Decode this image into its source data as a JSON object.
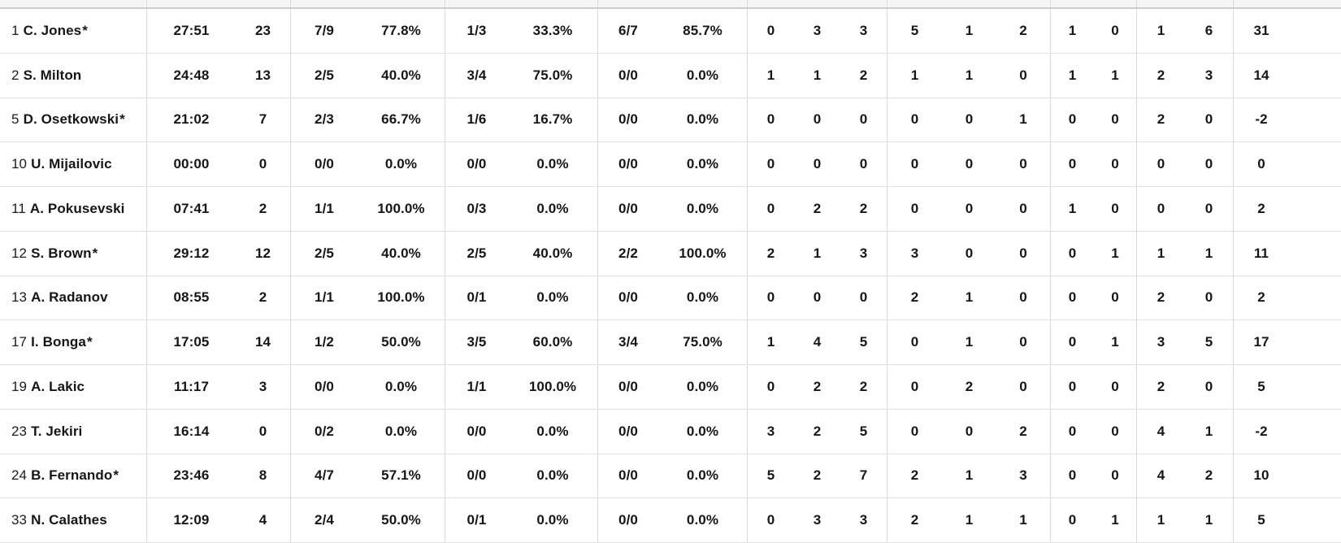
{
  "table": {
    "starter_mark": "*",
    "stat_keys": [
      "min",
      "pts",
      "fg2",
      "fg2_pct",
      "fg3",
      "fg3_pct",
      "ft",
      "ft_pct",
      "oreb",
      "dreb",
      "reb",
      "ast",
      "stl",
      "tov",
      "blk_fv",
      "blk_ag",
      "fouls_cm",
      "fouls_rv",
      "pir"
    ],
    "players": [
      {
        "number": "1",
        "name": "C. Jones",
        "starter": true,
        "stats": [
          "27:51",
          "23",
          "7/9",
          "77.8%",
          "1/3",
          "33.3%",
          "6/7",
          "85.7%",
          "0",
          "3",
          "3",
          "5",
          "1",
          "2",
          "1",
          "0",
          "1",
          "6",
          "31"
        ]
      },
      {
        "number": "2",
        "name": "S. Milton",
        "starter": false,
        "stats": [
          "24:48",
          "13",
          "2/5",
          "40.0%",
          "3/4",
          "75.0%",
          "0/0",
          "0.0%",
          "1",
          "1",
          "2",
          "1",
          "1",
          "0",
          "1",
          "1",
          "2",
          "3",
          "14"
        ]
      },
      {
        "number": "5",
        "name": "D. Osetkowski",
        "starter": true,
        "stats": [
          "21:02",
          "7",
          "2/3",
          "66.7%",
          "1/6",
          "16.7%",
          "0/0",
          "0.0%",
          "0",
          "0",
          "0",
          "0",
          "0",
          "1",
          "0",
          "0",
          "2",
          "0",
          "-2"
        ]
      },
      {
        "number": "10",
        "name": "U. Mijailovic",
        "starter": false,
        "stats": [
          "00:00",
          "0",
          "0/0",
          "0.0%",
          "0/0",
          "0.0%",
          "0/0",
          "0.0%",
          "0",
          "0",
          "0",
          "0",
          "0",
          "0",
          "0",
          "0",
          "0",
          "0",
          "0"
        ]
      },
      {
        "number": "11",
        "name": "A. Pokusevski",
        "starter": false,
        "stats": [
          "07:41",
          "2",
          "1/1",
          "100.0%",
          "0/3",
          "0.0%",
          "0/0",
          "0.0%",
          "0",
          "2",
          "2",
          "0",
          "0",
          "0",
          "1",
          "0",
          "0",
          "0",
          "2"
        ]
      },
      {
        "number": "12",
        "name": "S. Brown",
        "starter": true,
        "stats": [
          "29:12",
          "12",
          "2/5",
          "40.0%",
          "2/5",
          "40.0%",
          "2/2",
          "100.0%",
          "2",
          "1",
          "3",
          "3",
          "0",
          "0",
          "0",
          "1",
          "1",
          "1",
          "11"
        ]
      },
      {
        "number": "13",
        "name": "A. Radanov",
        "starter": false,
        "stats": [
          "08:55",
          "2",
          "1/1",
          "100.0%",
          "0/1",
          "0.0%",
          "0/0",
          "0.0%",
          "0",
          "0",
          "0",
          "2",
          "1",
          "0",
          "0",
          "0",
          "2",
          "0",
          "2"
        ]
      },
      {
        "number": "17",
        "name": "I. Bonga",
        "starter": true,
        "stats": [
          "17:05",
          "14",
          "1/2",
          "50.0%",
          "3/5",
          "60.0%",
          "3/4",
          "75.0%",
          "1",
          "4",
          "5",
          "0",
          "1",
          "0",
          "0",
          "1",
          "3",
          "5",
          "17"
        ]
      },
      {
        "number": "19",
        "name": "A. Lakic",
        "starter": false,
        "stats": [
          "11:17",
          "3",
          "0/0",
          "0.0%",
          "1/1",
          "100.0%",
          "0/0",
          "0.0%",
          "0",
          "2",
          "2",
          "0",
          "2",
          "0",
          "0",
          "0",
          "2",
          "0",
          "5"
        ]
      },
      {
        "number": "23",
        "name": "T. Jekiri",
        "starter": false,
        "stats": [
          "16:14",
          "0",
          "0/2",
          "0.0%",
          "0/0",
          "0.0%",
          "0/0",
          "0.0%",
          "3",
          "2",
          "5",
          "0",
          "0",
          "2",
          "0",
          "0",
          "4",
          "1",
          "-2"
        ]
      },
      {
        "number": "24",
        "name": "B. Fernando",
        "starter": true,
        "stats": [
          "23:46",
          "8",
          "4/7",
          "57.1%",
          "0/0",
          "0.0%",
          "0/0",
          "0.0%",
          "5",
          "2",
          "7",
          "2",
          "1",
          "3",
          "0",
          "0",
          "4",
          "2",
          "10"
        ]
      },
      {
        "number": "33",
        "name": "N. Calathes",
        "starter": false,
        "stats": [
          "12:09",
          "4",
          "2/4",
          "50.0%",
          "0/1",
          "0.0%",
          "0/0",
          "0.0%",
          "0",
          "3",
          "3",
          "2",
          "1",
          "1",
          "0",
          "1",
          "1",
          "1",
          "5"
        ]
      }
    ]
  }
}
